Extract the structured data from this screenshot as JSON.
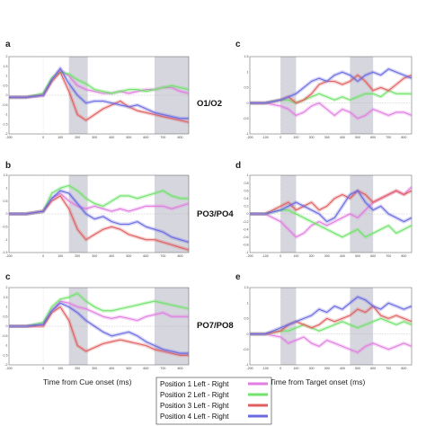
{
  "figure": {
    "x_label_left": "Time from Cue onset (ms)",
    "x_label_right": "Time from Target onset (ms)"
  },
  "legend": [
    {
      "label": "Position 1 Left - Right",
      "color": "#e27de2"
    },
    {
      "label": "Position 2 Left - Right",
      "color": "#6fe36a"
    },
    {
      "label": "Position 3 Left - Right",
      "color": "#e06060"
    },
    {
      "label": "Position 4 Left - Right",
      "color": "#6a6ae3"
    }
  ],
  "rows": [
    "O1/O2",
    "PO3/PO4",
    "PO7/PO8"
  ],
  "chart_data": [
    {
      "panel": "a",
      "row": "O1/O2",
      "type": "line",
      "x": [
        -200,
        -100,
        0,
        50,
        100,
        150,
        200,
        250,
        300,
        350,
        400,
        450,
        500,
        550,
        600,
        650,
        700,
        750,
        800,
        850
      ],
      "xlim": [
        -200,
        850
      ],
      "ylim": [
        -2,
        2
      ],
      "xticks": [
        -200,
        0,
        100,
        200,
        300,
        400,
        500,
        600,
        700,
        800
      ],
      "yticks": [
        -2,
        -1.5,
        -1,
        -0.5,
        0,
        0.5,
        1,
        1.5,
        2
      ],
      "shaded": [
        [
          150,
          260
        ],
        [
          650,
          850
        ]
      ],
      "series": [
        {
          "values": [
            -0.1,
            -0.1,
            0,
            0.8,
            1.3,
            1,
            0.5,
            0.3,
            0.2,
            0.1,
            0.1,
            0.2,
            0.1,
            0.2,
            0.3,
            0.3,
            0.4,
            0.4,
            0.2,
            0.1
          ]
        },
        {
          "values": [
            -0.1,
            -0.1,
            0.1,
            0.9,
            1.2,
            1.1,
            0.8,
            0.6,
            0.3,
            0.2,
            0.1,
            0.2,
            0.3,
            0.3,
            0.2,
            0.3,
            0.4,
            0.5,
            0.4,
            0.3
          ]
        },
        {
          "values": [
            -0.1,
            -0.1,
            0,
            0.7,
            1.2,
            0.2,
            -1,
            -1.3,
            -1,
            -0.7,
            -0.5,
            -0.3,
            -0.6,
            -0.8,
            -0.9,
            -1,
            -1.1,
            -1.2,
            -1.3,
            -1.4
          ]
        },
        {
          "values": [
            -0.1,
            -0.1,
            0,
            0.8,
            1.4,
            0.6,
            0,
            -0.4,
            -0.3,
            -0.3,
            -0.4,
            -0.5,
            -0.6,
            -0.5,
            -0.7,
            -0.9,
            -1,
            -1.1,
            -1.2,
            -1.2
          ]
        }
      ]
    },
    {
      "panel": "b",
      "row": "PO3/PO4",
      "type": "line",
      "x": [
        -200,
        -100,
        0,
        50,
        100,
        150,
        200,
        250,
        300,
        350,
        400,
        450,
        500,
        550,
        600,
        650,
        700,
        750,
        800,
        850
      ],
      "xlim": [
        -200,
        850
      ],
      "ylim": [
        -1.5,
        1.5
      ],
      "xticks": [
        -200,
        0,
        100,
        200,
        300,
        400,
        500,
        600,
        700,
        800
      ],
      "yticks": [
        -1.5,
        -1,
        -0.5,
        0,
        0.5,
        1,
        1.5
      ],
      "shaded": [
        [
          150,
          260
        ],
        [
          650,
          850
        ]
      ],
      "series": [
        {
          "values": [
            0,
            0,
            0.1,
            0.6,
            0.8,
            0.5,
            0.3,
            0.2,
            0.3,
            0.2,
            0.1,
            0.2,
            0.1,
            0.2,
            0.3,
            0.3,
            0.3,
            0.2,
            0.3,
            0.4
          ]
        },
        {
          "values": [
            0,
            0,
            0.1,
            0.8,
            1,
            1.1,
            0.9,
            0.6,
            0.4,
            0.3,
            0.5,
            0.7,
            0.7,
            0.6,
            0.7,
            0.8,
            0.9,
            0.7,
            0.6,
            0.6
          ]
        },
        {
          "values": [
            0,
            0,
            0.1,
            0.5,
            0.7,
            0.2,
            -0.6,
            -1,
            -0.8,
            -0.6,
            -0.5,
            -0.6,
            -0.8,
            -0.9,
            -1,
            -1,
            -1.1,
            -1.2,
            -1.3,
            -1.4
          ]
        },
        {
          "values": [
            0,
            0,
            0.1,
            0.6,
            0.9,
            0.8,
            0.4,
            0,
            -0.2,
            -0.1,
            -0.3,
            -0.4,
            -0.4,
            -0.3,
            -0.5,
            -0.6,
            -0.7,
            -0.9,
            -1,
            -1.1
          ]
        }
      ]
    },
    {
      "panel": "c",
      "row": "PO7/PO8",
      "type": "line",
      "x": [
        -200,
        -100,
        0,
        50,
        100,
        150,
        200,
        250,
        300,
        350,
        400,
        450,
        500,
        550,
        600,
        650,
        700,
        750,
        800,
        850
      ],
      "xlim": [
        -200,
        850
      ],
      "ylim": [
        -2,
        2
      ],
      "xticks": [
        -200,
        0,
        100,
        200,
        300,
        400,
        500,
        600,
        700,
        800
      ],
      "yticks": [
        -2,
        -1.5,
        -1,
        -0.5,
        0,
        0.5,
        1,
        1.5,
        2
      ],
      "shaded": [
        [
          150,
          260
        ],
        [
          650,
          850
        ]
      ],
      "series": [
        {
          "values": [
            0,
            0,
            0.1,
            0.8,
            1.3,
            1.2,
            1,
            0.9,
            0.7,
            0.5,
            0.4,
            0.5,
            0.4,
            0.3,
            0.5,
            0.6,
            0.7,
            0.5,
            0.5,
            0.5
          ]
        },
        {
          "values": [
            0,
            0,
            0.2,
            1,
            1.4,
            1.5,
            1.7,
            1.3,
            1,
            0.8,
            0.8,
            0.9,
            1,
            1.1,
            1.2,
            1.3,
            1.2,
            1.1,
            1,
            0.9
          ]
        },
        {
          "values": [
            0,
            0,
            0,
            0.7,
            1,
            0.3,
            -1,
            -1.3,
            -1.1,
            -0.9,
            -0.8,
            -0.7,
            -0.8,
            -0.9,
            -1,
            -1.2,
            -1.3,
            -1.4,
            -1.5,
            -1.5
          ]
        },
        {
          "values": [
            0,
            0,
            0.1,
            0.8,
            1.2,
            1,
            0.7,
            0.3,
            0,
            -0.3,
            -0.5,
            -0.4,
            -0.3,
            -0.5,
            -0.8,
            -1,
            -1.2,
            -1.3,
            -1.4,
            -1.4
          ]
        }
      ]
    },
    {
      "panel": "c",
      "row": "O1/O2",
      "type": "line",
      "x": [
        -200,
        -100,
        0,
        50,
        100,
        150,
        200,
        250,
        300,
        350,
        400,
        450,
        500,
        550,
        600,
        650,
        700,
        750,
        800,
        850
      ],
      "xlim": [
        -200,
        850
      ],
      "ylim": [
        -1,
        1.5
      ],
      "xticks": [
        -200,
        -100,
        0,
        100,
        200,
        300,
        400,
        500,
        600,
        700,
        800
      ],
      "yticks": [
        -1,
        -0.5,
        0,
        0.5,
        1,
        1.5
      ],
      "shaded": [
        [
          0,
          100
        ],
        [
          450,
          600
        ]
      ],
      "series": [
        {
          "values": [
            0,
            0,
            -0.1,
            -0.2,
            -0.4,
            -0.3,
            -0.1,
            0,
            -0.2,
            -0.4,
            -0.2,
            -0.3,
            -0.5,
            -0.4,
            -0.2,
            -0.3,
            -0.4,
            -0.3,
            -0.3,
            -0.4
          ]
        },
        {
          "values": [
            0,
            0,
            0.1,
            0.1,
            0,
            0.1,
            0.2,
            0.3,
            0.2,
            0.1,
            0.2,
            0.1,
            0.2,
            0.3,
            0.3,
            0.2,
            0.4,
            0.3,
            0.3,
            0.3
          ]
        },
        {
          "values": [
            0,
            0,
            0.1,
            0.2,
            0,
            0.1,
            0.3,
            0.6,
            0.7,
            0.7,
            0.6,
            0.7,
            0.9,
            0.7,
            0.4,
            0.5,
            0.4,
            0.6,
            0.8,
            0.9
          ]
        },
        {
          "values": [
            0,
            0,
            0.1,
            0.2,
            0.3,
            0.5,
            0.7,
            0.8,
            0.7,
            0.9,
            1,
            0.9,
            0.7,
            0.9,
            1,
            0.9,
            1.1,
            1,
            0.9,
            0.8
          ]
        }
      ]
    },
    {
      "panel": "d",
      "row": "PO3/PO4",
      "type": "line",
      "x": [
        -200,
        -100,
        0,
        50,
        100,
        150,
        200,
        250,
        300,
        350,
        400,
        450,
        500,
        550,
        600,
        650,
        700,
        750,
        800,
        850
      ],
      "xlim": [
        -200,
        850
      ],
      "ylim": [
        -1,
        1
      ],
      "xticks": [
        -200,
        -100,
        0,
        100,
        200,
        300,
        400,
        500,
        600,
        700,
        800
      ],
      "yticks": [
        -1,
        -0.8,
        -0.6,
        -0.4,
        -0.2,
        0,
        0.2,
        0.4,
        0.6,
        0.8,
        1
      ],
      "shaded": [
        [
          0,
          100
        ],
        [
          450,
          600
        ]
      ],
      "series": [
        {
          "values": [
            0,
            0,
            -0.2,
            -0.4,
            -0.6,
            -0.5,
            -0.3,
            -0.2,
            -0.3,
            -0.2,
            -0.1,
            0,
            -0.1,
            0.1,
            0.3,
            0.4,
            0.5,
            0.6,
            0.5,
            0.7
          ]
        },
        {
          "values": [
            0,
            0,
            0.1,
            0.1,
            0,
            -0.1,
            -0.2,
            -0.3,
            -0.4,
            -0.5,
            -0.6,
            -0.5,
            -0.4,
            -0.6,
            -0.5,
            -0.4,
            -0.3,
            -0.5,
            -0.4,
            -0.3
          ]
        },
        {
          "values": [
            0,
            0,
            0.2,
            0.3,
            0.1,
            0.2,
            0.3,
            0.1,
            0.2,
            0.4,
            0.5,
            0.4,
            0.6,
            0.5,
            0.3,
            0.4,
            0.5,
            0.6,
            0.5,
            0.6
          ]
        },
        {
          "values": [
            0,
            0,
            0.1,
            0.2,
            0.3,
            0.2,
            0.1,
            0,
            -0.2,
            -0.1,
            0.2,
            0.5,
            0.6,
            0.3,
            0.1,
            0.2,
            0,
            -0.1,
            -0.2,
            -0.1
          ]
        }
      ]
    },
    {
      "panel": "e",
      "row": "PO7/PO8",
      "type": "line",
      "x": [
        -200,
        -100,
        0,
        50,
        100,
        150,
        200,
        250,
        300,
        350,
        400,
        450,
        500,
        550,
        600,
        650,
        700,
        750,
        800,
        850
      ],
      "xlim": [
        -200,
        850
      ],
      "ylim": [
        -1,
        1.5
      ],
      "xticks": [
        -200,
        -100,
        0,
        100,
        200,
        300,
        400,
        500,
        600,
        700,
        800
      ],
      "yticks": [
        -1,
        -0.5,
        0,
        0.5,
        1,
        1.5
      ],
      "shaded": [
        [
          0,
          100
        ],
        [
          450,
          600
        ]
      ],
      "series": [
        {
          "values": [
            0,
            0,
            -0.1,
            -0.3,
            -0.2,
            -0.1,
            -0.3,
            -0.4,
            -0.2,
            -0.3,
            -0.4,
            -0.5,
            -0.6,
            -0.4,
            -0.3,
            -0.4,
            -0.5,
            -0.4,
            -0.3,
            -0.4
          ]
        },
        {
          "values": [
            0,
            0,
            0.1,
            0.1,
            0.2,
            0.3,
            0.2,
            0.1,
            0.2,
            0.3,
            0.4,
            0.3,
            0.2,
            0.3,
            0.4,
            0.5,
            0.4,
            0.3,
            0.4,
            0.3
          ]
        },
        {
          "values": [
            0,
            0,
            0.1,
            0.3,
            0.4,
            0.3,
            0.2,
            0.3,
            0.5,
            0.4,
            0.5,
            0.6,
            0.8,
            0.7,
            0.9,
            0.6,
            0.5,
            0.6,
            0.5,
            0.4
          ]
        },
        {
          "values": [
            0,
            0,
            0.2,
            0.3,
            0.4,
            0.5,
            0.6,
            0.8,
            0.7,
            0.9,
            0.8,
            1,
            1.2,
            1.1,
            0.9,
            0.8,
            1,
            0.9,
            0.8,
            0.9
          ]
        }
      ]
    }
  ]
}
